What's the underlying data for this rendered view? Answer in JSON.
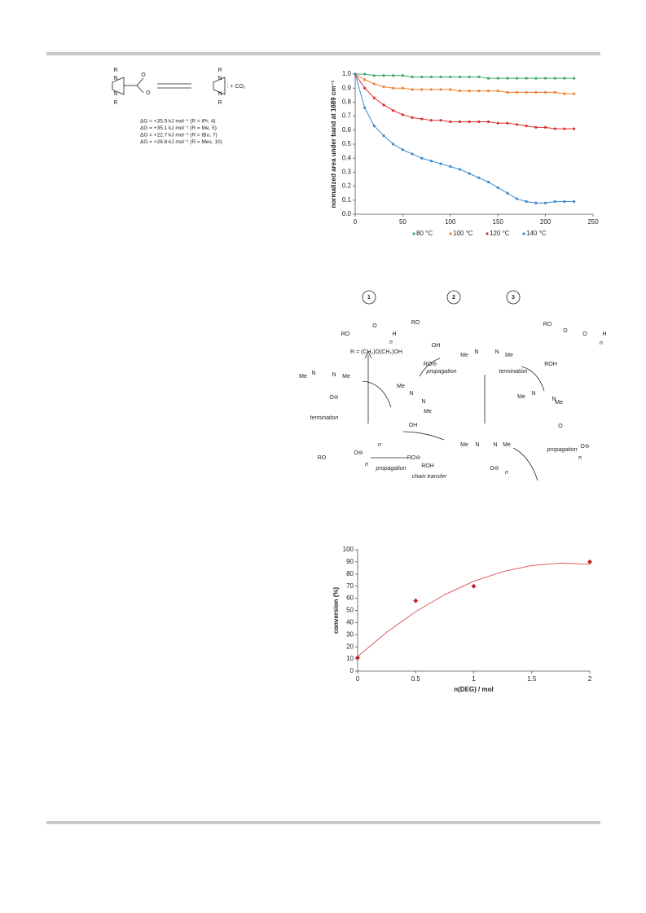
{
  "chart_data": [
    {
      "type": "line",
      "y_label": "normalized area under band at 1689 cm⁻¹",
      "x": [
        0,
        10,
        20,
        30,
        40,
        50,
        60,
        70,
        80,
        90,
        100,
        110,
        120,
        130,
        140,
        150,
        160,
        170,
        180,
        190,
        200,
        210,
        220,
        230
      ],
      "series": [
        {
          "name": "80 °C",
          "color": "#3aaa6a",
          "values": [
            1.0,
            1.0,
            0.99,
            0.99,
            0.99,
            0.99,
            0.98,
            0.98,
            0.98,
            0.98,
            0.98,
            0.98,
            0.98,
            0.98,
            0.97,
            0.97,
            0.97,
            0.97,
            0.97,
            0.97,
            0.97,
            0.97,
            0.97,
            0.97
          ]
        },
        {
          "name": "100 °C",
          "color": "#f08030",
          "values": [
            1.0,
            0.96,
            0.93,
            0.91,
            0.9,
            0.9,
            0.89,
            0.89,
            0.89,
            0.89,
            0.89,
            0.88,
            0.88,
            0.88,
            0.88,
            0.88,
            0.87,
            0.87,
            0.87,
            0.87,
            0.87,
            0.87,
            0.86,
            0.86
          ]
        },
        {
          "name": "120 °C",
          "color": "#d83030",
          "values": [
            1.0,
            0.9,
            0.83,
            0.78,
            0.74,
            0.71,
            0.69,
            0.68,
            0.67,
            0.67,
            0.66,
            0.66,
            0.66,
            0.66,
            0.66,
            0.65,
            0.65,
            0.64,
            0.63,
            0.62,
            0.62,
            0.61,
            0.61,
            0.61
          ]
        },
        {
          "name": "140 °C",
          "color": "#3a8ad0",
          "values": [
            1.0,
            0.76,
            0.63,
            0.56,
            0.5,
            0.46,
            0.43,
            0.4,
            0.38,
            0.36,
            0.34,
            0.32,
            0.29,
            0.26,
            0.23,
            0.19,
            0.15,
            0.11,
            0.09,
            0.08,
            0.08,
            0.09,
            0.09,
            0.09
          ]
        }
      ],
      "xlim": [
        0,
        250
      ],
      "xticks": [
        0,
        50,
        100,
        150,
        200,
        250
      ],
      "ylim": [
        0,
        1.0
      ],
      "yticks": [
        {
          "value": 0,
          "label": "0.0"
        },
        {
          "value": 0.1,
          "label": "0.1"
        },
        {
          "value": 0.2,
          "label": "0.2"
        },
        {
          "value": 0.3,
          "label": "0.3"
        },
        {
          "value": 0.4,
          "label": "0.4"
        },
        {
          "value": 0.5,
          "label": "0.5"
        },
        {
          "value": 0.6,
          "label": "0.6"
        },
        {
          "value": 0.7,
          "label": "0.7"
        },
        {
          "value": 0.8,
          "label": "0.8"
        },
        {
          "value": 0.9,
          "label": "0.9"
        },
        {
          "value": 1.0,
          "label": "1.0"
        }
      ],
      "legend": "bottom"
    },
    {
      "type": "scatter",
      "x_label": "n(DEG) / mol",
      "y_label": "conversion (%)",
      "x": [
        0,
        0.5,
        1,
        2
      ],
      "values": [
        11,
        58,
        70,
        90
      ],
      "color": "#c82020",
      "fit": {
        "x": [
          0,
          0.25,
          0.5,
          0.75,
          1,
          1.25,
          1.5,
          1.75,
          2
        ],
        "values": [
          12,
          32,
          49,
          63,
          74,
          82,
          87,
          89,
          88
        ],
        "color": "#e06060"
      },
      "xlim": [
        0,
        2
      ],
      "xticks": [
        0,
        0.5,
        1,
        1.5,
        2
      ],
      "ylim": [
        0,
        100
      ],
      "yticks": [
        0,
        10,
        20,
        30,
        40,
        50,
        60,
        70,
        80,
        90,
        100
      ]
    }
  ],
  "scheme1": {
    "labels": [
      "R",
      "N",
      "N",
      "R",
      "O",
      "O",
      "R",
      "N",
      "N",
      "R",
      ": + CO₂"
    ],
    "energies": [
      "ΔG = +35.5 kJ mol⁻¹ (R = iPr, 4)",
      "ΔG = +35.1 kJ mol⁻¹ (R = Me, 5)",
      "ΔG = +22.7 kJ mol⁻¹ (R = tBu, 7)",
      "ΔG = +26.8 kJ mol⁻¹ (R = Mes, 10)"
    ]
  },
  "scheme2": {
    "labels": [
      "1",
      "2",
      "3",
      "RO",
      "O",
      "H",
      "n",
      "R = (CH₂)O(CH₂)OH",
      "RO",
      "OH",
      "RO",
      "O",
      "O",
      "H",
      "n",
      "Me",
      "N",
      "N",
      "Me",
      "RO⊖",
      "propagation",
      "termination",
      "ROH",
      "Me",
      "N",
      "N",
      "Me",
      "O⊖",
      "termination",
      "Me",
      "N",
      "N",
      "Me",
      "OH",
      "Me",
      "N",
      "N",
      "Me",
      "O",
      "O⊖",
      "n",
      "Me",
      "N",
      "N",
      "Me",
      "O⊖",
      "RO",
      "O⊖",
      "n",
      "n",
      "propagation",
      "RO⊖",
      "ROH",
      "chain transfer",
      "propagation",
      "n"
    ]
  }
}
